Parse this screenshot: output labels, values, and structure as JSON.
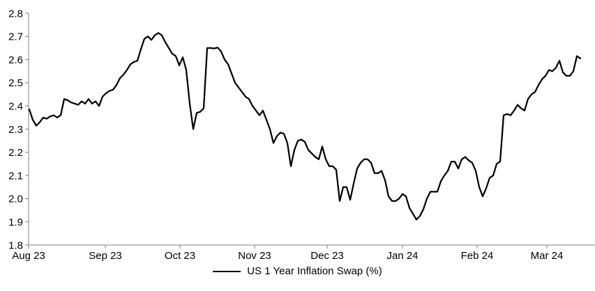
{
  "chart_data": {
    "type": "line",
    "title": "",
    "xlabel": "",
    "ylabel": "",
    "grid": false,
    "ylim": [
      1.8,
      2.8
    ],
    "y_axis": {
      "min": 1.8,
      "max": 2.8,
      "tick_step": 0.1,
      "tick_labels": [
        "1.8",
        "1.9",
        "2.0",
        "2.1",
        "2.2",
        "2.3",
        "2.4",
        "2.5",
        "2.6",
        "2.7",
        "2.8"
      ]
    },
    "x_axis": {
      "tick_labels": [
        "Aug 23",
        "Sep 23",
        "Oct 23",
        "Nov 23",
        "Dec 23",
        "Jan 24",
        "Feb 24",
        "Mar 24"
      ]
    },
    "legend": {
      "label": "US 1 Year Inflation Swap (%)",
      "position": "bottom-center"
    },
    "colors": {
      "line": "#000000",
      "axis": "#808080",
      "text": "#000000",
      "background": "#ffffff"
    },
    "series": [
      {
        "name": "US 1 Year Inflation Swap (%)",
        "color": "#000000",
        "values": [
          2.385,
          2.34,
          2.315,
          2.33,
          2.35,
          2.345,
          2.355,
          2.36,
          2.35,
          2.36,
          2.43,
          2.425,
          2.415,
          2.41,
          2.405,
          2.42,
          2.41,
          2.43,
          2.41,
          2.42,
          2.4,
          2.44,
          2.455,
          2.465,
          2.47,
          2.49,
          2.52,
          2.535,
          2.555,
          2.58,
          2.59,
          2.595,
          2.645,
          2.69,
          2.7,
          2.685,
          2.705,
          2.715,
          2.705,
          2.675,
          2.65,
          2.625,
          2.615,
          2.575,
          2.61,
          2.555,
          2.41,
          2.3,
          2.37,
          2.375,
          2.39,
          2.65,
          2.65,
          2.648,
          2.652,
          2.635,
          2.6,
          2.58,
          2.54,
          2.5,
          2.48,
          2.46,
          2.44,
          2.43,
          2.4,
          2.38,
          2.36,
          2.38,
          2.34,
          2.3,
          2.24,
          2.27,
          2.285,
          2.28,
          2.24,
          2.14,
          2.21,
          2.25,
          2.255,
          2.245,
          2.21,
          2.195,
          2.18,
          2.17,
          2.225,
          2.17,
          2.14,
          2.14,
          2.125,
          1.99,
          2.05,
          2.05,
          1.995,
          2.065,
          2.13,
          2.155,
          2.17,
          2.17,
          2.155,
          2.11,
          2.11,
          2.12,
          2.08,
          2.01,
          1.99,
          1.99,
          2.0,
          2.02,
          2.01,
          1.96,
          1.935,
          1.91,
          1.925,
          1.955,
          2.0,
          2.03,
          2.03,
          2.03,
          2.075,
          2.1,
          2.12,
          2.16,
          2.16,
          2.13,
          2.17,
          2.18,
          2.165,
          2.155,
          2.12,
          2.05,
          2.01,
          2.045,
          2.09,
          2.1,
          2.15,
          2.16,
          2.36,
          2.365,
          2.36,
          2.38,
          2.405,
          2.39,
          2.38,
          2.43,
          2.45,
          2.46,
          2.49,
          2.515,
          2.53,
          2.555,
          2.55,
          2.565,
          2.595,
          2.545,
          2.53,
          2.53,
          2.55,
          2.615,
          2.605
        ]
      }
    ]
  }
}
